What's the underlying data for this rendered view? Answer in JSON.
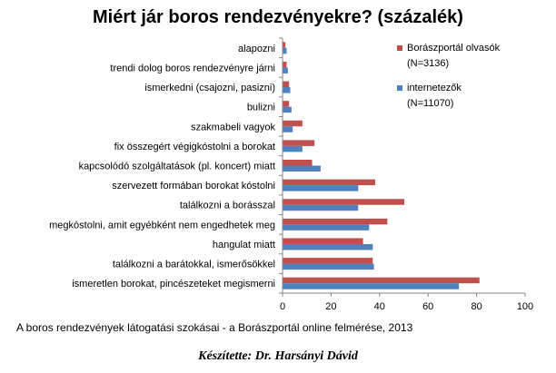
{
  "chart_data": {
    "type": "bar",
    "orientation": "horizontal",
    "title": "Miért jár boros rendezvényekre? (százalék)",
    "categories": [
      "alapozni",
      "trendi dolog boros rendezvényre járni",
      "ismerkedni (csajozni, pasizni)",
      "bulizni",
      "szakmabeli vagyok",
      "fix összegért végigkóstolni  a borokat",
      "kapcsolódó szolgáltatások  (pl. koncert) miatt",
      "szervezett formában borokat kóstolni",
      "találkozni a borásszal",
      "megkóstolni, amit egyébként nem engedhetek meg",
      "hangulat miatt",
      "találkozni  a barátokkal, ismerősökkel",
      "ismeretlen borokat, pincészeteket megismerni"
    ],
    "series": [
      {
        "name": "Borászportál olvasók (N=3136)",
        "name_lines": [
          "Borászportál olvasók",
          "(N=3136)"
        ],
        "color": "#C0504D",
        "values": [
          1,
          1.5,
          2.5,
          2.5,
          8,
          13,
          12,
          38,
          50,
          43,
          33,
          37,
          81
        ]
      },
      {
        "name": "internetezők (N=11070)",
        "name_lines": [
          "internetezők",
          "(N=11070)"
        ],
        "color": "#4F81BD",
        "values": [
          1.5,
          2,
          3,
          3.5,
          4,
          8,
          15.5,
          31,
          31,
          35.5,
          37,
          37.5,
          72.5
        ]
      }
    ],
    "xlim": [
      0,
      100
    ],
    "xticks": [
      0,
      20,
      40,
      60,
      80,
      100
    ],
    "grid": false,
    "legend": "right"
  },
  "footer": {
    "source": "A boros rendezvények látogatási szokásai  - a Borászportál online felmérése, 2013",
    "author": "Készítette: Dr. Harsányi Dávid"
  }
}
